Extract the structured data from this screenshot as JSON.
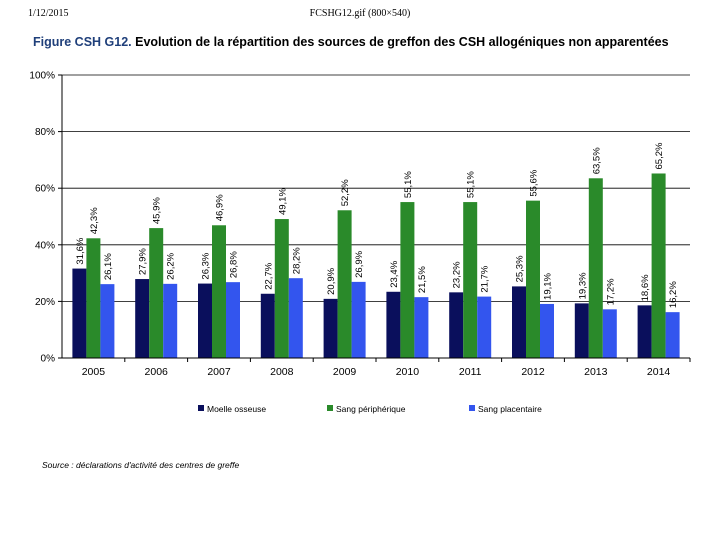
{
  "header": {
    "date": "1/12/2015",
    "file": "FCSHG12.gif (800×540)"
  },
  "figure": {
    "label": "Figure CSH G12.",
    "title": "Evolution de la répartition des sources de greffon des CSH allogéniques non apparentées"
  },
  "source": "Source : déclarations d'activité des centres de greffe",
  "colors": {
    "moelle": "#0a0f5c",
    "sang_periph": "#2a8a2a",
    "placentaire": "#3355ee",
    "axis": "#000000",
    "grid": "#000000"
  },
  "chart_data": {
    "type": "bar",
    "categories": [
      "2005",
      "2006",
      "2007",
      "2008",
      "2009",
      "2010",
      "2011",
      "2012",
      "2013",
      "2014"
    ],
    "series": [
      {
        "name": "Moelle osseuse",
        "values": [
          31.6,
          27.9,
          26.3,
          22.7,
          20.9,
          23.4,
          23.2,
          25.3,
          19.3,
          18.6
        ],
        "labels": [
          "31,6%",
          "27,9%",
          "26,3%",
          "22,7%",
          "20,9%",
          "23,4%",
          "23,2%",
          "25,3%",
          "19,3%",
          "18,6%"
        ]
      },
      {
        "name": "Sang périphérique",
        "values": [
          42.3,
          45.9,
          46.9,
          49.1,
          52.2,
          55.1,
          55.1,
          55.6,
          63.5,
          65.2
        ],
        "labels": [
          "42,3%",
          "45,9%",
          "46,9%",
          "49,1%",
          "52,2%",
          "55,1%",
          "55,1%",
          "55,6%",
          "63,5%",
          "65,2%"
        ]
      },
      {
        "name": "Sang placentaire",
        "values": [
          26.1,
          26.2,
          26.8,
          28.2,
          26.9,
          21.5,
          21.7,
          19.1,
          17.2,
          16.2
        ],
        "labels": [
          "26,1%",
          "26,2%",
          "26,8%",
          "28,2%",
          "26,9%",
          "21,5%",
          "21,7%",
          "19,1%",
          "17,2%",
          "16,2%"
        ]
      }
    ],
    "yticks": [
      "0%",
      "20%",
      "40%",
      "60%",
      "80%",
      "100%"
    ],
    "ylim": [
      0,
      100
    ],
    "grid": true,
    "legend": "bottom"
  }
}
